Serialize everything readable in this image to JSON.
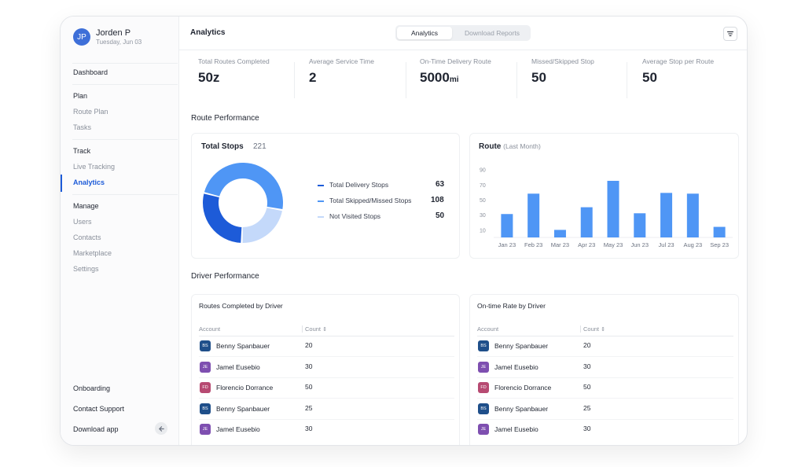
{
  "user": {
    "initials": "JP",
    "name": "Jorden P",
    "date": "Tuesday, Jun 03",
    "avatar_color": "#3e6fd8"
  },
  "nav": {
    "dashboard": "Dashboard",
    "plan": "Plan",
    "route_plan": "Route Plan",
    "tasks": "Tasks",
    "track": "Track",
    "live_tracking": "Live Tracking",
    "analytics": "Analytics",
    "manage": "Manage",
    "users": "Users",
    "contacts": "Contacts",
    "marketplace": "Marketplace",
    "settings": "Settings",
    "onboarding": "Onboarding",
    "contact_support": "Contact Support",
    "download_app": "Download app"
  },
  "header": {
    "title": "Analytics",
    "tabs": [
      "Analytics",
      "Download Reports"
    ],
    "active_tab": "Analytics"
  },
  "stats": [
    {
      "label": "Total Routes Completed",
      "value": "50z",
      "unit": ""
    },
    {
      "label": "Average Service Time",
      "value": "2",
      "unit": ""
    },
    {
      "label": "On-Time Delivery Route",
      "value": "5000",
      "unit": "mi"
    },
    {
      "label": "Missed/Skipped Stop",
      "value": "50",
      "unit": ""
    },
    {
      "label": "Average Stop per Route",
      "value": "50",
      "unit": ""
    }
  ],
  "route_performance": {
    "title": "Route Performance",
    "total_stops": {
      "label": "Total Stops",
      "value": "221"
    },
    "legend": [
      {
        "label": "Total Delivery Stops",
        "value": "63",
        "color": "#1d5bd8"
      },
      {
        "label": "Total Skipped/Missed Stops",
        "value": "108",
        "color": "#4f96f5"
      },
      {
        "label": "Not Visited Stops",
        "value": "50",
        "color": "#c4d9fa"
      }
    ],
    "bar_title": "Route",
    "bar_subtitle": "(Last Month)"
  },
  "chart_data": [
    {
      "type": "pie",
      "title": "Total Stops",
      "categories": [
        "Total Delivery Stops",
        "Total Skipped/Missed Stops",
        "Not Visited Stops"
      ],
      "values": [
        63,
        108,
        50
      ],
      "colors": [
        "#1d5bd8",
        "#4f96f5",
        "#c4d9fa"
      ],
      "donut": true
    },
    {
      "type": "bar",
      "title": "Route",
      "subtitle": "(Last Month)",
      "categories": [
        "Jan 23",
        "Feb 23",
        "Mar 23",
        "Apr 23",
        "May 23",
        "Jun 23",
        "Jul 23",
        "Aug 23",
        "Sep 23"
      ],
      "values": [
        31,
        58,
        10,
        40,
        75,
        32,
        59,
        58,
        14
      ],
      "yticks": [
        10,
        30,
        50,
        70,
        90
      ],
      "ylim": [
        0,
        100
      ],
      "color": "#4f96f5",
      "grid": false
    }
  ],
  "driver_performance": {
    "title": "Driver Performance",
    "tables": [
      {
        "title": "Routes Completed by Driver",
        "col_account": "Account",
        "col_count": "Count",
        "rows": [
          {
            "initials": "BS",
            "name": "Benny Spanbauer",
            "count": "20",
            "color": "#1f4f8a"
          },
          {
            "initials": "JE",
            "name": "Jamel Eusebio",
            "count": "30",
            "color": "#7e4fb0"
          },
          {
            "initials": "FD",
            "name": "Florencio Dorrance",
            "count": "50",
            "color": "#b74a72"
          },
          {
            "initials": "BS",
            "name": "Benny Spanbauer",
            "count": "25",
            "color": "#1f4f8a"
          },
          {
            "initials": "JE",
            "name": "Jamel Eusebio",
            "count": "30",
            "color": "#7e4fb0"
          }
        ]
      },
      {
        "title": "On-time Rate by Driver",
        "col_account": "Account",
        "col_count": "Count",
        "rows": [
          {
            "initials": "BS",
            "name": "Benny Spanbauer",
            "count": "20",
            "color": "#1f4f8a"
          },
          {
            "initials": "JE",
            "name": "Jamel Eusebio",
            "count": "30",
            "color": "#7e4fb0"
          },
          {
            "initials": "FD",
            "name": "Florencio Dorrance",
            "count": "50",
            "color": "#b74a72"
          },
          {
            "initials": "BS",
            "name": "Benny Spanbauer",
            "count": "25",
            "color": "#1f4f8a"
          },
          {
            "initials": "JE",
            "name": "Jamel Eusebio",
            "count": "30",
            "color": "#7e4fb0"
          }
        ]
      }
    ]
  }
}
